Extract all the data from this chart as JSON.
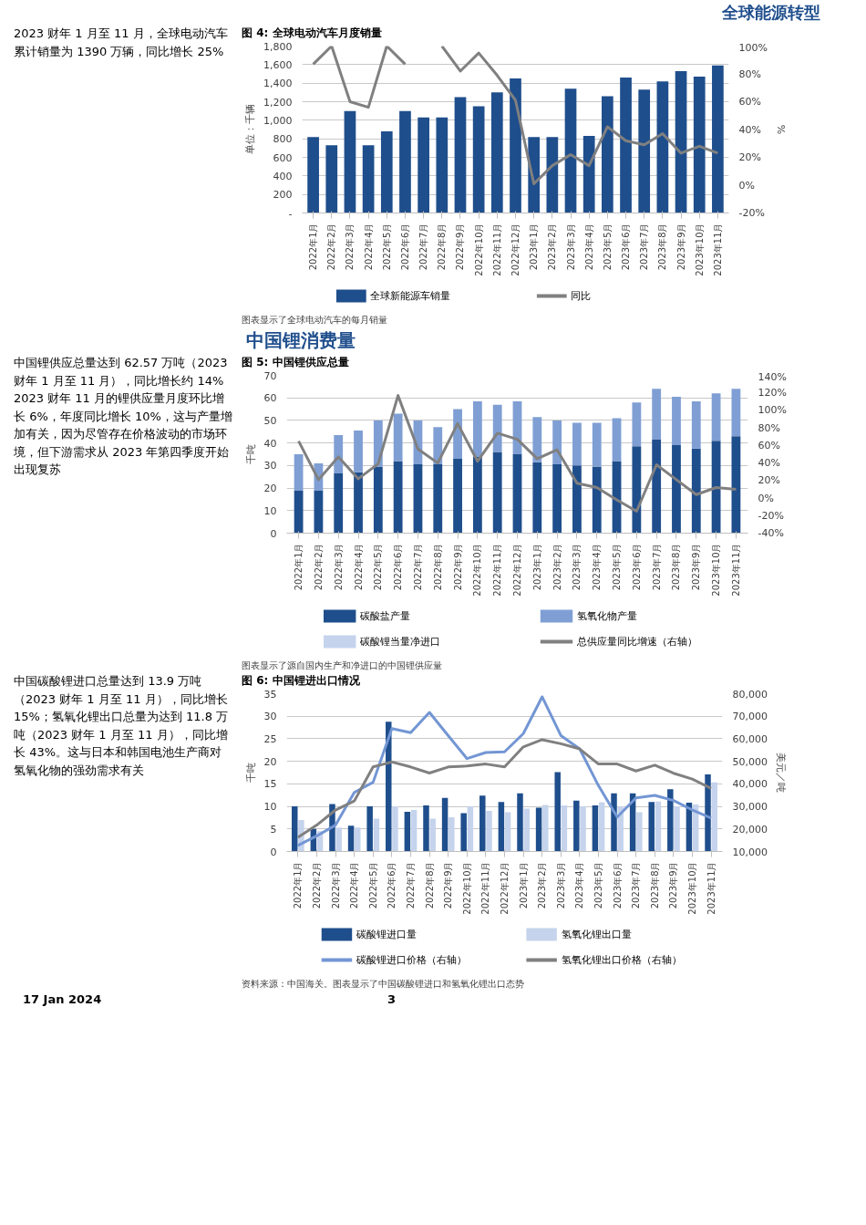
{
  "chart_data": [
    {
      "type": "other",
      "annotations": [
        "全球能源转型",
        "中国锂消费量",
        "17 Jan 2024",
        "3"
      ]
    },
    {
      "type": "bar",
      "title": "图 4: 全球电动汽车月度销量",
      "ylabel": "单位：千辆",
      "y2label": "%",
      "annotations": [
        "2023 财年 1 月至 11 月，全球电动汽车累计销量为 1390 万辆，同比增长 25%",
        "图表显示了全球电动汽车的每月销量"
      ],
      "categories": [
        "2022年1月",
        "2022年2月",
        "2022年3月",
        "2022年4月",
        "2022年5月",
        "2022年6月",
        "2022年7月",
        "2022年8月",
        "2022年9月",
        "2022年10月",
        "2022年11月",
        "2022年12月",
        "2023年1月",
        "2023年2月",
        "2023年3月",
        "2023年4月",
        "2023年5月",
        "2023年6月",
        "2023年7月",
        "2023年8月",
        "2023年9月",
        "2023年10月",
        "2023年11月"
      ],
      "series": [
        {
          "name": "全球新能源车销量",
          "color": "#1f4e8c",
          "values": [
            820,
            730,
            1100,
            730,
            880,
            1100,
            1030,
            1030,
            1250,
            1150,
            1300,
            1450,
            820,
            820,
            1340,
            830,
            1260,
            1460,
            1330,
            1420,
            1530,
            1470,
            1590
          ]
        },
        {
          "name": "同比",
          "type": "line",
          "axis": "y2",
          "color": "#808080",
          "values": [
            87,
            100,
            60,
            56,
            100,
            87,
            null,
            100,
            82,
            95,
            79,
            61,
            1,
            14,
            22,
            14,
            42,
            32,
            29,
            37,
            23,
            28,
            23
          ]
        }
      ],
      "ylim": [
        0,
        1800
      ],
      "yticks": [
        {
          "value": 0,
          "label": "-"
        },
        200,
        400,
        600,
        800,
        {
          "value": 1000,
          "label": "1,000"
        },
        {
          "value": 1200,
          "label": "1,200"
        },
        {
          "value": 1400,
          "label": "1,400"
        },
        {
          "value": 1600,
          "label": "1,600"
        },
        {
          "value": 1800,
          "label": "1,800"
        }
      ],
      "y2lim": [
        -20,
        100
      ],
      "y2ticks": [
        {
          "value": -20,
          "label": "-20%"
        },
        {
          "value": 0,
          "label": "0%"
        },
        {
          "value": 20,
          "label": "20%"
        },
        {
          "value": 40,
          "label": "40%"
        },
        {
          "value": 60,
          "label": "60%"
        },
        {
          "value": 80,
          "label": "80%"
        },
        {
          "value": 100,
          "label": "100%"
        }
      ],
      "grid": "y",
      "legend": "bottom",
      "line_style": "solid"
    },
    {
      "type": "bar",
      "title": "图 5: 中国锂供应总量",
      "ylabel": "千吨",
      "stacked": true,
      "annotations": [
        "中国锂供应总量达到 62.57 万吨（2023 财年 1 月至 11 月），同比增长约 14%",
        "2023 财年 11 月的锂供应量月度环比增长 6%，年度同比增长 10%，这与产量增加有关，因为尽管存在价格波动的市场环境，但下游需求从 2023 年第四季度开始出现复苏",
        "图表显示了源自国内生产和净进口的中国锂供应量"
      ],
      "categories": [
        "2022年1月",
        "2022年2月",
        "2022年3月",
        "2022年4月",
        "2022年5月",
        "2022年6月",
        "2022年7月",
        "2022年8月",
        "2022年9月",
        "2022年10月",
        "2022年11月",
        "2022年12月",
        "2023年1月",
        "2023年2月",
        "2023年3月",
        "2023年4月",
        "2023年5月",
        "2023年6月",
        "2023年7月",
        "2023年8月",
        "2023年9月",
        "2023年10月",
        "2023年11月"
      ],
      "series": [
        {
          "name": "碳酸盐产量",
          "color": "#1f4e8c",
          "values": [
            19,
            19,
            26.5,
            27,
            29.5,
            32,
            30.5,
            30.5,
            33,
            34,
            36,
            35,
            31.5,
            30.5,
            30,
            29.5,
            32,
            38.5,
            41.5,
            39,
            37.5,
            41,
            43
          ]
        },
        {
          "name": "氢氧化物产量",
          "color": "#7f9fd4",
          "values": [
            16,
            12,
            17,
            18.5,
            20.5,
            21,
            19.5,
            16.5,
            22,
            24.5,
            21,
            23.5,
            20,
            19.5,
            19,
            19.5,
            19,
            19.5,
            22.5,
            21.5,
            21,
            21,
            21
          ]
        },
        {
          "name": "碳酸锂当量净进口",
          "color": "#c5d3ec",
          "values": [
            null,
            null,
            null,
            null,
            null,
            null,
            null,
            null,
            null,
            null,
            null,
            null,
            null,
            null,
            null,
            null,
            null,
            null,
            null,
            null,
            null,
            null,
            null
          ]
        },
        {
          "name": "总供应量同比增速（右轴）",
          "type": "line",
          "axis": "y2",
          "color": "#808080",
          "values": [
            65,
            21,
            47,
            22,
            39,
            117,
            56,
            40,
            85,
            42,
            74,
            67,
            45,
            55,
            17,
            12,
            -2,
            -15,
            38,
            21,
            4,
            12,
            10
          ]
        }
      ],
      "ylim": [
        0,
        70
      ],
      "yticks": [
        0,
        10,
        20,
        30,
        40,
        50,
        60,
        70
      ],
      "y2lim": [
        -40,
        140
      ],
      "y2ticks": [
        {
          "value": -40,
          "label": "-40%"
        },
        {
          "value": -20,
          "label": "-20%"
        },
        {
          "value": 0,
          "label": "0%"
        },
        {
          "value": 20,
          "label": "20%"
        },
        {
          "value": 40,
          "label": "40%"
        },
        {
          "value": 60,
          "label": "60%"
        },
        {
          "value": 80,
          "label": "80%"
        },
        {
          "value": 100,
          "label": "100%"
        },
        {
          "value": 120,
          "label": "120%"
        },
        {
          "value": 140,
          "label": "140%"
        }
      ],
      "grid": "y",
      "legend": "bottom",
      "line_style": "solid"
    },
    {
      "type": "bar",
      "title": "图 6: 中国锂进出口情况",
      "ylabel": "千吨",
      "y2label": "美元／吨",
      "annotations": [
        "中国碳酸锂进口总量达到 13.9 万吨（2023 财年 1 月至 11 月），同比增长 15%；氢氧化锂出口总量为达到 11.8 万吨（2023 财年 1 月至 11 月），同比增长 43%。这与日本和韩国电池生产商对氢氧化物的强劲需求有关",
        "资料来源：中国海关。图表显示了中国碳酸锂进口和氢氧化锂出口态势"
      ],
      "categories": [
        "2022年1月",
        "2022年2月",
        "2022年3月",
        "2022年4月",
        "2022年5月",
        "2022年6月",
        "2022年7月",
        "2022年8月",
        "2022年9月",
        "2022年10月",
        "2022年11月",
        "2022年12月",
        "2023年1月",
        "2023年2月",
        "2023年3月",
        "2023年4月",
        "2023年5月",
        "2023年6月",
        "2023年7月",
        "2023年8月",
        "2023年9月",
        "2023年10月",
        "2023年11月"
      ],
      "series": [
        {
          "name": "碳酸锂进口量",
          "color": "#1f4e8c",
          "values": [
            10,
            5,
            10.5,
            5.7,
            10,
            28.8,
            8.8,
            10.2,
            11.9,
            8.5,
            12.4,
            11,
            12.9,
            9.7,
            17.6,
            11.3,
            10.2,
            12.9,
            12.9,
            11,
            13.8,
            10.8,
            17.1
          ]
        },
        {
          "name": "氢氧化锂出口量",
          "color": "#c5d3ec",
          "values": [
            7,
            4.5,
            5.3,
            5.3,
            7.3,
            10,
            9.2,
            7.3,
            7.6,
            10,
            9,
            8.7,
            9.5,
            10.3,
            10.2,
            10,
            10.9,
            10,
            8.7,
            11.1,
            10,
            10.4,
            15.3
          ]
        },
        {
          "name": "碳酸锂进口价格（右轴）",
          "type": "line",
          "axis": "y2",
          "color": "#7396d4",
          "values": [
            12700,
            16900,
            21700,
            36200,
            40700,
            64500,
            62700,
            71700,
            61400,
            51200,
            53900,
            54200,
            62300,
            78600,
            61400,
            55500,
            39200,
            25300,
            33800,
            34900,
            32600,
            28400,
            24800
          ]
        },
        {
          "name": "氢氧化锂出口价格（右轴）",
          "type": "line",
          "axis": "y2",
          "color": "#808080",
          "values": [
            16300,
            21700,
            28400,
            32400,
            47500,
            49700,
            47500,
            44800,
            47500,
            47900,
            48800,
            47500,
            56400,
            59600,
            57800,
            55500,
            48800,
            48800,
            45700,
            48300,
            44700,
            42100,
            38000
          ]
        }
      ],
      "ylim": [
        0,
        35
      ],
      "yticks": [
        0,
        5,
        10,
        15,
        20,
        25,
        30,
        35
      ],
      "y2lim": [
        10000,
        80000
      ],
      "y2ticks": [
        {
          "value": 10000,
          "label": "10,000"
        },
        {
          "value": 20000,
          "label": "20,000"
        },
        {
          "value": 30000,
          "label": "30,000"
        },
        {
          "value": 40000,
          "label": "40,000"
        },
        {
          "value": 50000,
          "label": "50,000"
        },
        {
          "value": 60000,
          "label": "60,000"
        },
        {
          "value": 70000,
          "label": "70,000"
        },
        {
          "value": 80000,
          "label": "80,000"
        }
      ],
      "grid": "y",
      "legend": "bottom",
      "line_style": "solid"
    }
  ]
}
